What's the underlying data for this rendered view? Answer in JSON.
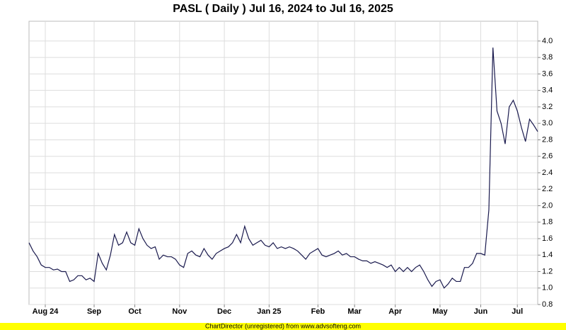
{
  "chart_data": {
    "type": "line",
    "title": "PASL ( Daily ) Jul 16, 2024 to Jul 16, 2025",
    "footer": "ChartDirector (unregistered) from www.advsofteng.com",
    "categories": [
      null,
      null,
      null,
      null,
      "Aug 24",
      null,
      null,
      null,
      null,
      null,
      null,
      null,
      null,
      null,
      null,
      null,
      "Sep",
      null,
      null,
      null,
      null,
      null,
      null,
      null,
      null,
      null,
      "Oct",
      null,
      null,
      null,
      null,
      null,
      null,
      null,
      null,
      null,
      null,
      "Nov",
      null,
      null,
      null,
      null,
      null,
      null,
      null,
      null,
      null,
      null,
      "Dec",
      null,
      null,
      null,
      null,
      null,
      null,
      null,
      null,
      null,
      null,
      "Jan 25",
      null,
      null,
      null,
      null,
      null,
      null,
      null,
      null,
      null,
      null,
      null,
      "Feb",
      null,
      null,
      null,
      null,
      null,
      null,
      null,
      null,
      "Mar",
      null,
      null,
      null,
      null,
      null,
      null,
      null,
      null,
      null,
      "Apr",
      null,
      null,
      null,
      null,
      null,
      null,
      null,
      null,
      null,
      null,
      "May",
      null,
      null,
      null,
      null,
      null,
      null,
      null,
      null,
      null,
      "Jun",
      null,
      null,
      null,
      null,
      null,
      null,
      null,
      null,
      "Jul",
      null,
      null,
      null,
      null,
      null
    ],
    "values": [
      1.55,
      1.45,
      1.38,
      1.28,
      1.25,
      1.25,
      1.22,
      1.23,
      1.2,
      1.2,
      1.08,
      1.1,
      1.15,
      1.15,
      1.1,
      1.12,
      1.08,
      1.42,
      1.3,
      1.22,
      1.4,
      1.65,
      1.52,
      1.55,
      1.68,
      1.55,
      1.52,
      1.72,
      1.6,
      1.52,
      1.48,
      1.5,
      1.35,
      1.4,
      1.38,
      1.38,
      1.35,
      1.28,
      1.25,
      1.42,
      1.45,
      1.4,
      1.38,
      1.48,
      1.4,
      1.35,
      1.42,
      1.45,
      1.48,
      1.5,
      1.55,
      1.65,
      1.55,
      1.75,
      1.6,
      1.52,
      1.55,
      1.58,
      1.52,
      1.5,
      1.55,
      1.48,
      1.5,
      1.48,
      1.5,
      1.48,
      1.45,
      1.4,
      1.35,
      1.42,
      1.45,
      1.48,
      1.4,
      1.38,
      1.4,
      1.42,
      1.45,
      1.4,
      1.42,
      1.38,
      1.38,
      1.35,
      1.33,
      1.33,
      1.3,
      1.32,
      1.3,
      1.28,
      1.25,
      1.28,
      1.2,
      1.25,
      1.2,
      1.25,
      1.2,
      1.25,
      1.28,
      1.2,
      1.1,
      1.02,
      1.08,
      1.1,
      1.0,
      1.05,
      1.12,
      1.08,
      1.08,
      1.25,
      1.25,
      1.3,
      1.42,
      1.42,
      1.4,
      1.95,
      3.92,
      3.15,
      3.0,
      2.75,
      3.2,
      3.28,
      3.15,
      2.95,
      2.78,
      3.05,
      2.98,
      2.9
    ],
    "color": "#1a1a4e",
    "ylim": [
      0.8,
      4.24
    ],
    "yticks": [
      0.8,
      {
        "value": 1.0,
        "label": "1.0"
      },
      1.2,
      1.4,
      1.6,
      1.8,
      {
        "value": 2.0,
        "label": "2.0"
      },
      2.2,
      2.4,
      2.6,
      2.8,
      {
        "value": 3.0,
        "label": "3.0"
      },
      3.2,
      3.4,
      3.6,
      3.8,
      {
        "value": 4.0,
        "label": "4.0"
      }
    ],
    "grid": true
  }
}
